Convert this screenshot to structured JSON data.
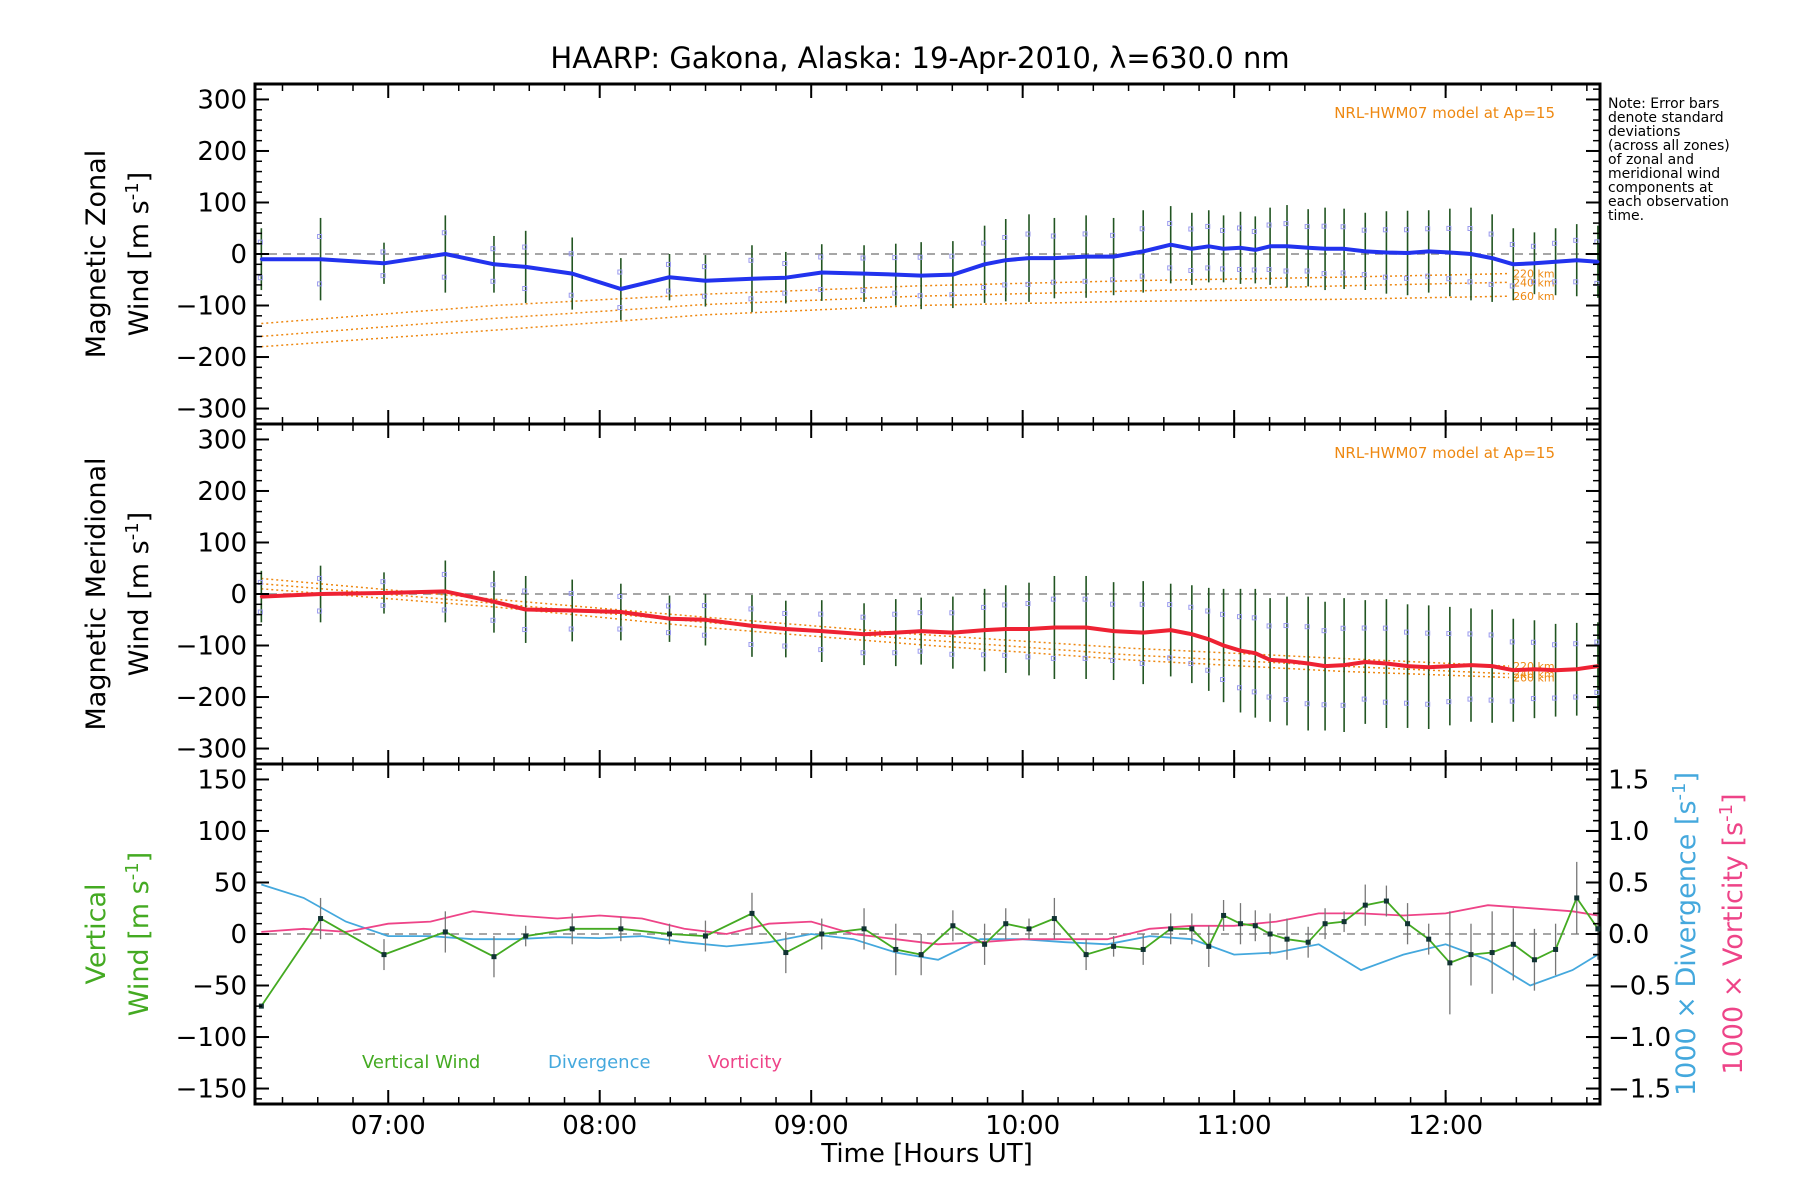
{
  "title": "HAARP: Gakona,  Alaska: 19-Apr-2010, λ=630.0 nm",
  "note_lines": [
    "Note: Error bars",
    "denote standard",
    "deviations",
    "(across all zones)",
    "of zonal and",
    "meridional wind",
    "components at",
    "each observation",
    "time."
  ],
  "model_label": "NRL-HWM07 model at Ap=15",
  "model_altitudes": [
    "220 km",
    "240 km",
    "260 km"
  ],
  "colors": {
    "zonal": "#2233ee",
    "meridional": "#ee2233",
    "vertical": "#44aa22",
    "divergence": "#44a8dd",
    "vorticity": "#ee4488",
    "model": "#ee8811",
    "errorbar": "#225522",
    "zone_points": "#9a9aee",
    "zero_line": "#888888"
  },
  "chart_data": [
    {
      "type": "line",
      "name": "zonal",
      "ylabel_line1": "Magnetic Zonal",
      "ylabel_line2": "Wind [m s",
      "ylabel_sup": "-1",
      "ylabel_end": "]",
      "ylim": [
        -330,
        330
      ],
      "yticks": [
        300,
        200,
        100,
        0,
        -100,
        -200,
        -300
      ],
      "ytick_labels": [
        "300",
        "200",
        "100",
        "0",
        "−100",
        "−200",
        "−300"
      ],
      "x": [
        6.4,
        6.68,
        6.98,
        7.27,
        7.5,
        7.65,
        7.87,
        8.1,
        8.33,
        8.5,
        8.72,
        8.88,
        9.05,
        9.25,
        9.4,
        9.52,
        9.67,
        9.82,
        9.92,
        10.03,
        10.15,
        10.3,
        10.43,
        10.57,
        10.7,
        10.8,
        10.88,
        10.95,
        11.03,
        11.1,
        11.17,
        11.25,
        11.35,
        11.43,
        11.52,
        11.62,
        11.72,
        11.82,
        11.92,
        12.02,
        12.12,
        12.22,
        12.32,
        12.42,
        12.52,
        12.62,
        12.72
      ],
      "y": [
        -10,
        -10,
        -18,
        0,
        -20,
        -25,
        -38,
        -68,
        -45,
        -52,
        -48,
        -46,
        -36,
        -38,
        -40,
        -42,
        -40,
        -20,
        -12,
        -8,
        -8,
        -5,
        -5,
        5,
        18,
        10,
        15,
        10,
        12,
        8,
        15,
        15,
        12,
        10,
        10,
        5,
        3,
        2,
        5,
        3,
        0,
        -8,
        -20,
        -18,
        -15,
        -12,
        -15
      ],
      "err": [
        60,
        80,
        40,
        75,
        55,
        70,
        70,
        60,
        45,
        50,
        65,
        50,
        55,
        55,
        60,
        65,
        65,
        75,
        80,
        85,
        78,
        80,
        75,
        80,
        75,
        70,
        70,
        65,
        70,
        65,
        75,
        80,
        75,
        80,
        78,
        75,
        80,
        82,
        80,
        85,
        90,
        85,
        70,
        60,
        65,
        70,
        70
      ],
      "model": [
        {
          "label": "220 km",
          "x": [
            6.4,
            7.5,
            8.5,
            9.5,
            10.5,
            11.5,
            12.3
          ],
          "y": [
            -135,
            -100,
            -78,
            -62,
            -52,
            -45,
            -38
          ]
        },
        {
          "label": "240 km",
          "x": [
            6.4,
            7.5,
            8.5,
            9.5,
            10.5,
            11.5,
            12.3
          ],
          "y": [
            -160,
            -125,
            -98,
            -82,
            -72,
            -62,
            -55
          ]
        },
        {
          "label": "260 km",
          "x": [
            6.4,
            7.5,
            8.5,
            9.5,
            10.5,
            11.5,
            12.3
          ],
          "y": [
            -180,
            -148,
            -118,
            -100,
            -92,
            -88,
            -82
          ]
        }
      ]
    },
    {
      "type": "line",
      "name": "meridional",
      "ylabel_line1": "Magnetic Meridional",
      "ylabel_line2": "Wind [m s",
      "ylabel_sup": "-1",
      "ylabel_end": "]",
      "ylim": [
        -330,
        330
      ],
      "yticks": [
        300,
        200,
        100,
        0,
        -100,
        -200,
        -300
      ],
      "ytick_labels": [
        "300",
        "200",
        "100",
        "0",
        "−100",
        "−200",
        "−300"
      ],
      "x": [
        6.4,
        6.68,
        6.98,
        7.27,
        7.5,
        7.65,
        7.87,
        8.1,
        8.33,
        8.5,
        8.72,
        8.88,
        9.05,
        9.25,
        9.4,
        9.52,
        9.67,
        9.82,
        9.92,
        10.03,
        10.15,
        10.3,
        10.43,
        10.57,
        10.7,
        10.8,
        10.88,
        10.95,
        11.03,
        11.1,
        11.17,
        11.25,
        11.35,
        11.43,
        11.52,
        11.62,
        11.72,
        11.82,
        11.92,
        12.02,
        12.12,
        12.22,
        12.32,
        12.42,
        12.52,
        12.62,
        12.72
      ],
      "y": [
        -5,
        0,
        2,
        5,
        -15,
        -30,
        -32,
        -35,
        -48,
        -50,
        -62,
        -68,
        -72,
        -78,
        -75,
        -72,
        -75,
        -70,
        -68,
        -68,
        -65,
        -65,
        -72,
        -75,
        -70,
        -78,
        -88,
        -100,
        -110,
        -115,
        -128,
        -130,
        -135,
        -140,
        -138,
        -132,
        -135,
        -140,
        -142,
        -140,
        -138,
        -140,
        -148,
        -146,
        -148,
        -146,
        -140
      ],
      "err": [
        50,
        55,
        40,
        60,
        60,
        65,
        60,
        55,
        45,
        50,
        60,
        55,
        60,
        60,
        65,
        65,
        70,
        80,
        85,
        90,
        100,
        100,
        95,
        100,
        90,
        95,
        100,
        110,
        120,
        125,
        120,
        125,
        130,
        125,
        130,
        120,
        125,
        120,
        120,
        115,
        110,
        110,
        100,
        95,
        90,
        90,
        85
      ],
      "model": [
        {
          "label": "220 km",
          "x": [
            6.4,
            7.5,
            8.5,
            9.5,
            10.5,
            11.5,
            12.3
          ],
          "y": [
            30,
            -10,
            -45,
            -78,
            -105,
            -125,
            -140
          ]
        },
        {
          "label": "240 km",
          "x": [
            6.4,
            7.5,
            8.5,
            9.5,
            10.5,
            11.5,
            12.3
          ],
          "y": [
            20,
            -18,
            -55,
            -88,
            -118,
            -140,
            -155
          ]
        },
        {
          "label": "260 km",
          "x": [
            6.4,
            7.5,
            8.5,
            9.5,
            10.5,
            11.5,
            12.3
          ],
          "y": [
            10,
            -25,
            -65,
            -98,
            -128,
            -150,
            -162
          ]
        }
      ]
    },
    {
      "type": "line",
      "name": "vertical",
      "ylabel_line1": "Vertical",
      "ylabel_line2": "Wind [m s",
      "ylabel_sup": "-1",
      "ylabel_end": "]",
      "ylim": [
        -165,
        165
      ],
      "yticks": [
        150,
        100,
        50,
        0,
        -50,
        -100,
        -150
      ],
      "ytick_labels": [
        "150",
        "100",
        "50",
        "0",
        "−50",
        "−100",
        "−150"
      ],
      "y2lim": [
        -1.65,
        1.65
      ],
      "y2ticks": [
        1.5,
        1.0,
        0.5,
        0.0,
        -0.5,
        -1.0,
        -1.5
      ],
      "y2tick_labels": [
        "1.5",
        "1.0",
        "0.5",
        "0.0",
        "−0.5",
        "−1.0",
        "−1.5"
      ],
      "y2label_div": "1000 × Divergence [s",
      "y2label_vort": "1000 × Vorticity [s",
      "y2label_sup": "-1",
      "y2label_end": "]",
      "legend": [
        "Vertical Wind",
        "Divergence",
        "Vorticity"
      ],
      "vertical": {
        "x": [
          6.4,
          6.68,
          6.98,
          7.27,
          7.5,
          7.65,
          7.87,
          8.1,
          8.33,
          8.5,
          8.72,
          8.88,
          9.05,
          9.25,
          9.4,
          9.52,
          9.67,
          9.82,
          9.92,
          10.03,
          10.15,
          10.3,
          10.43,
          10.57,
          10.7,
          10.8,
          10.88,
          10.95,
          11.03,
          11.1,
          11.17,
          11.25,
          11.35,
          11.43,
          11.52,
          11.62,
          11.72,
          11.82,
          11.92,
          12.02,
          12.12,
          12.22,
          12.32,
          12.42,
          12.52,
          12.62,
          12.72
        ],
        "y": [
          -70,
          15,
          -20,
          2,
          -22,
          -2,
          5,
          5,
          0,
          -2,
          20,
          -18,
          0,
          5,
          -15,
          -20,
          8,
          -10,
          10,
          5,
          15,
          -20,
          -12,
          -15,
          5,
          5,
          -12,
          18,
          10,
          8,
          0,
          -5,
          -8,
          10,
          12,
          28,
          32,
          10,
          -5,
          -28,
          -20,
          -18,
          -10,
          -25,
          -15,
          35,
          5
        ],
        "err": [
          0,
          20,
          15,
          20,
          20,
          10,
          15,
          12,
          10,
          15,
          20,
          20,
          15,
          20,
          25,
          20,
          15,
          20,
          15,
          10,
          20,
          15,
          10,
          15,
          15,
          15,
          20,
          15,
          20,
          15,
          20,
          20,
          15,
          15,
          10,
          20,
          15,
          20,
          15,
          50,
          30,
          40,
          35,
          30,
          25,
          35,
          30
        ]
      },
      "divergence": {
        "x": [
          6.4,
          6.6,
          6.8,
          7.0,
          7.2,
          7.4,
          7.6,
          7.8,
          8.0,
          8.2,
          8.4,
          8.6,
          8.8,
          9.0,
          9.2,
          9.4,
          9.6,
          9.8,
          10.0,
          10.2,
          10.4,
          10.6,
          10.8,
          11.0,
          11.2,
          11.4,
          11.6,
          11.8,
          12.0,
          12.2,
          12.4,
          12.6,
          12.72
        ],
        "y": [
          0.48,
          0.35,
          0.12,
          -0.02,
          -0.02,
          -0.05,
          -0.05,
          -0.03,
          -0.04,
          -0.02,
          -0.08,
          -0.12,
          -0.08,
          0.0,
          -0.05,
          -0.18,
          -0.25,
          -0.05,
          -0.05,
          -0.08,
          -0.1,
          -0.02,
          -0.05,
          -0.2,
          -0.18,
          -0.1,
          -0.35,
          -0.2,
          -0.1,
          -0.25,
          -0.5,
          -0.35,
          -0.2
        ]
      },
      "vorticity": {
        "x": [
          6.4,
          6.6,
          6.8,
          7.0,
          7.2,
          7.4,
          7.6,
          7.8,
          8.0,
          8.2,
          8.4,
          8.6,
          8.8,
          9.0,
          9.2,
          9.4,
          9.6,
          9.8,
          10.0,
          10.2,
          10.4,
          10.6,
          10.8,
          11.0,
          11.2,
          11.4,
          11.6,
          11.8,
          12.0,
          12.2,
          12.4,
          12.6,
          12.72
        ],
        "y": [
          0.02,
          0.05,
          0.02,
          0.1,
          0.12,
          0.22,
          0.18,
          0.15,
          0.18,
          0.15,
          0.05,
          0.0,
          0.1,
          0.12,
          0.0,
          -0.05,
          -0.1,
          -0.08,
          -0.05,
          -0.05,
          -0.05,
          0.05,
          0.08,
          0.08,
          0.12,
          0.2,
          0.2,
          0.18,
          0.2,
          0.28,
          0.25,
          0.22,
          0.18
        ]
      }
    }
  ],
  "x_axis": {
    "xlim": [
      6.37,
      12.73
    ],
    "ticks": [
      7,
      8,
      9,
      10,
      11,
      12
    ],
    "tick_labels": [
      "07:00",
      "08:00",
      "09:00",
      "10:00",
      "11:00",
      "12:00"
    ],
    "label": "Time [Hours UT]"
  }
}
